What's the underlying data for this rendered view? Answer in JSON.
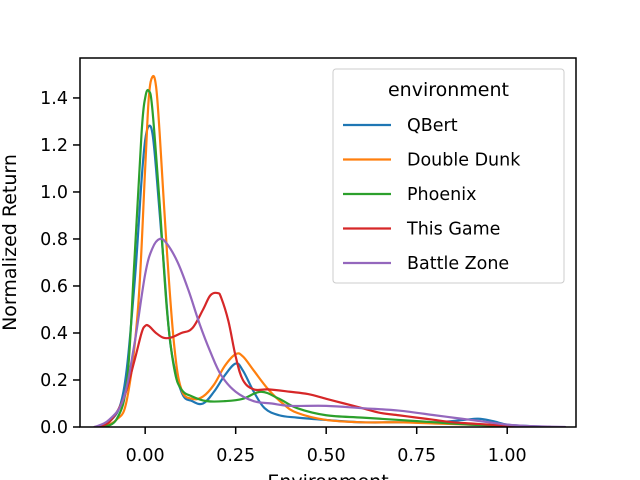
{
  "chart_data": {
    "type": "line",
    "subtype": "kde",
    "xlabel": "Environment",
    "ylabel": "Normalized Return",
    "xlim": [
      -0.18,
      1.19
    ],
    "ylim": [
      0.0,
      1.57
    ],
    "xticks": [
      0.0,
      0.25,
      0.5,
      0.75,
      1.0
    ],
    "xtick_labels": [
      "0.00",
      "0.25",
      "0.50",
      "0.75",
      "1.00"
    ],
    "yticks": [
      0.0,
      0.2,
      0.4,
      0.6,
      0.8,
      1.0,
      1.2,
      1.4
    ],
    "ytick_labels": [
      "0.0",
      "0.2",
      "0.4",
      "0.6",
      "0.8",
      "1.0",
      "1.2",
      "1.4"
    ],
    "grid": false,
    "legend": {
      "title": "environment",
      "position": "upper right"
    },
    "series": [
      {
        "name": "QBert",
        "color": "#1f77b4",
        "x": [
          -0.14,
          -0.1,
          -0.06,
          -0.03,
          -0.01,
          0.0,
          0.01,
          0.02,
          0.03,
          0.05,
          0.07,
          0.1,
          0.13,
          0.16,
          0.19,
          0.22,
          0.25,
          0.27,
          0.3,
          0.33,
          0.37,
          0.42,
          0.5,
          0.6,
          0.7,
          0.8,
          0.88,
          0.92,
          0.96,
          1.0,
          1.05,
          1.12
        ],
        "y": [
          0.0,
          0.02,
          0.15,
          0.6,
          1.05,
          1.22,
          1.28,
          1.25,
          1.1,
          0.72,
          0.35,
          0.15,
          0.11,
          0.1,
          0.15,
          0.22,
          0.27,
          0.24,
          0.15,
          0.08,
          0.05,
          0.04,
          0.03,
          0.02,
          0.02,
          0.02,
          0.03,
          0.035,
          0.025,
          0.01,
          0.005,
          0.0
        ]
      },
      {
        "name": "Double Dunk",
        "color": "#ff7f0e",
        "x": [
          -0.12,
          -0.08,
          -0.05,
          -0.02,
          0.0,
          0.01,
          0.02,
          0.03,
          0.04,
          0.06,
          0.08,
          0.1,
          0.13,
          0.16,
          0.19,
          0.22,
          0.25,
          0.27,
          0.3,
          0.34,
          0.38,
          0.42,
          0.5,
          0.6,
          0.7,
          0.8,
          0.9,
          1.0,
          1.1
        ],
        "y": [
          0.0,
          0.03,
          0.12,
          0.5,
          1.1,
          1.4,
          1.49,
          1.45,
          1.25,
          0.75,
          0.35,
          0.16,
          0.12,
          0.13,
          0.18,
          0.26,
          0.31,
          0.3,
          0.24,
          0.16,
          0.1,
          0.06,
          0.03,
          0.02,
          0.02,
          0.015,
          0.01,
          0.005,
          0.0
        ]
      },
      {
        "name": "Phoenix",
        "color": "#2ca02c",
        "x": [
          -0.12,
          -0.08,
          -0.05,
          -0.03,
          -0.01,
          0.0,
          0.01,
          0.02,
          0.04,
          0.06,
          0.08,
          0.1,
          0.13,
          0.17,
          0.22,
          0.27,
          0.32,
          0.37,
          0.42,
          0.5,
          0.6,
          0.7,
          0.8,
          0.9,
          1.0,
          1.1
        ],
        "y": [
          0.0,
          0.03,
          0.2,
          0.7,
          1.25,
          1.4,
          1.43,
          1.35,
          0.95,
          0.5,
          0.25,
          0.16,
          0.13,
          0.11,
          0.11,
          0.12,
          0.15,
          0.12,
          0.08,
          0.05,
          0.04,
          0.03,
          0.02,
          0.01,
          0.005,
          0.0
        ]
      },
      {
        "name": "This Game",
        "color": "#d62728",
        "x": [
          -0.14,
          -0.1,
          -0.06,
          -0.03,
          -0.01,
          0.0,
          0.01,
          0.03,
          0.05,
          0.07,
          0.1,
          0.13,
          0.16,
          0.18,
          0.2,
          0.21,
          0.23,
          0.25,
          0.27,
          0.3,
          0.34,
          0.4,
          0.45,
          0.5,
          0.55,
          0.6,
          0.65,
          0.7,
          0.75,
          0.8,
          0.85,
          0.9,
          0.95,
          1.0,
          1.05,
          1.12
        ],
        "y": [
          0.0,
          0.02,
          0.12,
          0.28,
          0.4,
          0.43,
          0.43,
          0.4,
          0.38,
          0.38,
          0.4,
          0.42,
          0.5,
          0.56,
          0.57,
          0.55,
          0.45,
          0.3,
          0.2,
          0.16,
          0.16,
          0.15,
          0.14,
          0.12,
          0.1,
          0.08,
          0.06,
          0.05,
          0.04,
          0.03,
          0.02,
          0.015,
          0.01,
          0.005,
          0.003,
          0.0
        ]
      },
      {
        "name": "Battle Zone",
        "color": "#9467bd",
        "x": [
          -0.14,
          -0.1,
          -0.06,
          -0.03,
          0.0,
          0.02,
          0.04,
          0.06,
          0.09,
          0.12,
          0.15,
          0.18,
          0.21,
          0.25,
          0.3,
          0.35,
          0.4,
          0.5,
          0.6,
          0.7,
          0.8,
          0.85,
          0.9,
          0.95,
          1.0,
          1.05,
          1.1,
          1.16
        ],
        "y": [
          0.0,
          0.03,
          0.12,
          0.35,
          0.65,
          0.76,
          0.8,
          0.78,
          0.7,
          0.58,
          0.44,
          0.32,
          0.22,
          0.15,
          0.11,
          0.1,
          0.09,
          0.09,
          0.08,
          0.07,
          0.05,
          0.04,
          0.03,
          0.02,
          0.01,
          0.005,
          0.002,
          0.0
        ]
      }
    ]
  }
}
